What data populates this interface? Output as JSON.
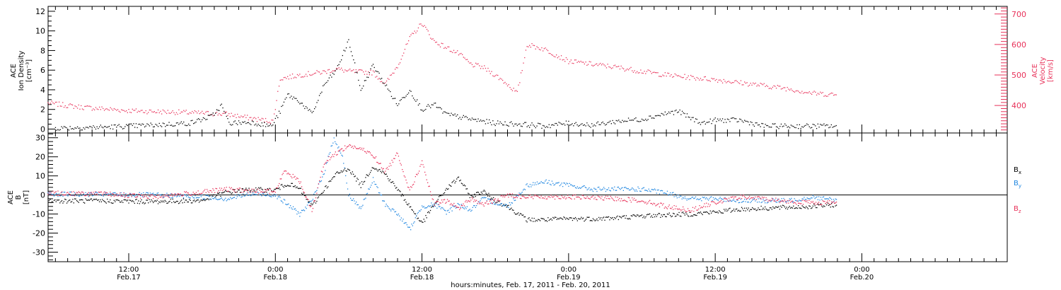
{
  "figure": {
    "xaxis_caption": "hours:minutes, Feb. 17, 2011 - Feb. 20, 2011",
    "time_ticks": [
      {
        "t": 12,
        "time": "12:00",
        "date": "Feb.17"
      },
      {
        "t": 24,
        "time": "0:00",
        "date": "Feb.18"
      },
      {
        "t": 36,
        "time": "12:00",
        "date": "Feb.18"
      },
      {
        "t": 48,
        "time": "0:00",
        "date": "Feb.19"
      },
      {
        "t": 60,
        "time": "12:00",
        "date": "Feb.19"
      },
      {
        "t": 72,
        "time": "0:00",
        "date": "Feb.20"
      }
    ],
    "colors": {
      "black": "#000000",
      "pink": "#e8325a",
      "blue": "#1f86e0"
    }
  },
  "chart_data": [
    {
      "type": "scatter",
      "panel": "top",
      "xlim": [
        5.4,
        83.9
      ],
      "xunit": "hours since 2011-02-17 00:00",
      "left_axis": {
        "label_lines": [
          "ACE",
          "Ion Density",
          "[cm⁻³]"
        ],
        "ylim": [
          -0.4,
          12.5
        ],
        "ticks": [
          0,
          2,
          4,
          6,
          8,
          10,
          12
        ],
        "color": "#000000"
      },
      "right_axis": {
        "label_lines": [
          "ACE",
          "Velocity",
          "[km/s]"
        ],
        "ylim": [
          310,
          725
        ],
        "ticks": [
          400,
          500,
          600,
          700
        ],
        "color": "#e8325a"
      },
      "series": [
        {
          "name": "",
          "axis": "left",
          "color": "#000000",
          "points": [
            [
              6,
              0.1
            ],
            [
              10,
              0.2
            ],
            [
              14,
              0.4
            ],
            [
              17,
              0.6
            ],
            [
              18.8,
              1.3
            ],
            [
              19.6,
              2.4
            ],
            [
              20.2,
              0.6
            ],
            [
              22,
              0.7
            ],
            [
              23.7,
              0.3
            ],
            [
              24.4,
              1.8
            ],
            [
              25,
              3.5
            ],
            [
              26,
              2.8
            ],
            [
              27,
              1.5
            ],
            [
              28,
              4.5
            ],
            [
              29,
              6
            ],
            [
              30,
              9
            ],
            [
              31,
              4
            ],
            [
              32,
              6.5
            ],
            [
              33,
              4.5
            ],
            [
              34,
              2.5
            ],
            [
              35,
              4
            ],
            [
              36,
              2
            ],
            [
              37,
              2.5
            ],
            [
              38,
              1.5
            ],
            [
              40,
              1
            ],
            [
              42,
              0.6
            ],
            [
              44,
              0.5
            ],
            [
              46,
              0.3
            ],
            [
              48,
              0.6
            ],
            [
              50,
              0.4
            ],
            [
              52,
              0.8
            ],
            [
              54,
              1
            ],
            [
              56,
              1.6
            ],
            [
              57,
              1.8
            ],
            [
              58,
              1.1
            ],
            [
              59,
              0.6
            ],
            [
              60,
              0.9
            ],
            [
              62,
              0.9
            ],
            [
              64,
              0.3
            ],
            [
              66,
              0.3
            ],
            [
              68,
              0.3
            ],
            [
              70,
              0.3
            ]
          ]
        },
        {
          "name": "",
          "axis": "right",
          "color": "#e8325a",
          "points": [
            [
              5.4,
              408
            ],
            [
              8,
              395
            ],
            [
              12,
              383
            ],
            [
              16,
              378
            ],
            [
              20,
              372
            ],
            [
              22.5,
              355
            ],
            [
              23.8,
              348
            ],
            [
              24.4,
              488
            ],
            [
              26,
              500
            ],
            [
              28,
              510
            ],
            [
              29,
              520
            ],
            [
              30,
              512
            ],
            [
              32,
              508
            ],
            [
              33,
              470
            ],
            [
              34,
              530
            ],
            [
              35,
              620
            ],
            [
              36,
              670
            ],
            [
              37,
              610
            ],
            [
              38,
              590
            ],
            [
              39,
              570
            ],
            [
              40,
              535
            ],
            [
              41,
              525
            ],
            [
              42,
              500
            ],
            [
              43,
              470
            ],
            [
              43.8,
              440
            ],
            [
              44.6,
              600
            ],
            [
              46,
              585
            ],
            [
              48,
              545
            ],
            [
              50,
              535
            ],
            [
              52,
              525
            ],
            [
              54,
              512
            ],
            [
              56,
              500
            ],
            [
              58,
              492
            ],
            [
              60,
              485
            ],
            [
              62,
              475
            ],
            [
              64,
              465
            ],
            [
              66,
              455
            ],
            [
              68,
              440
            ],
            [
              70,
              435
            ]
          ]
        }
      ]
    },
    {
      "type": "scatter",
      "panel": "bottom",
      "xlim": [
        5.4,
        83.9
      ],
      "xunit": "hours since 2011-02-17 00:00",
      "yaxis": {
        "label_lines": [
          "ACE",
          "B",
          "[nT]"
        ],
        "ylim": [
          -35,
          32.5
        ],
        "ticks": [
          -30,
          -20,
          -10,
          0,
          10,
          20,
          30
        ]
      },
      "zero_line": true,
      "series": [
        {
          "name": "Bx",
          "color": "#000000",
          "points": [
            [
              5.4,
              -3
            ],
            [
              10,
              -3.2
            ],
            [
              14,
              -3.5
            ],
            [
              18,
              -3
            ],
            [
              20,
              1.5
            ],
            [
              22,
              2.8
            ],
            [
              24,
              2.5
            ],
            [
              25,
              6
            ],
            [
              26,
              3
            ],
            [
              27,
              -6
            ],
            [
              28,
              3
            ],
            [
              29,
              11
            ],
            [
              30,
              14
            ],
            [
              31,
              5
            ],
            [
              32,
              15
            ],
            [
              33,
              11
            ],
            [
              34,
              3
            ],
            [
              35,
              -6
            ],
            [
              36,
              -15
            ],
            [
              37,
              -5
            ],
            [
              38,
              3
            ],
            [
              39,
              9
            ],
            [
              40,
              -1
            ],
            [
              41,
              2
            ],
            [
              42,
              -3
            ],
            [
              43,
              -6
            ],
            [
              44.6,
              -13
            ],
            [
              46,
              -13
            ],
            [
              48,
              -12.5
            ],
            [
              50,
              -12.5
            ],
            [
              52,
              -12
            ],
            [
              54,
              -11
            ],
            [
              56,
              -10.5
            ],
            [
              58,
              -10
            ],
            [
              60,
              -9
            ],
            [
              62,
              -7.5
            ],
            [
              64,
              -7
            ],
            [
              66,
              -6.5
            ],
            [
              68,
              -6
            ],
            [
              70,
              -5
            ]
          ]
        },
        {
          "name": "By",
          "color": "#1f86e0",
          "points": [
            [
              5.4,
              0.5
            ],
            [
              10,
              0.3
            ],
            [
              14,
              0
            ],
            [
              18,
              -1
            ],
            [
              20,
              -2
            ],
            [
              22,
              0.5
            ],
            [
              24,
              0
            ],
            [
              25,
              -5
            ],
            [
              26,
              -10
            ],
            [
              27,
              -3
            ],
            [
              28,
              12
            ],
            [
              28.8,
              30
            ],
            [
              29.5,
              20
            ],
            [
              30,
              0
            ],
            [
              31,
              -7
            ],
            [
              32,
              8
            ],
            [
              33,
              -5
            ],
            [
              34,
              -10
            ],
            [
              35,
              -18
            ],
            [
              36,
              -6
            ],
            [
              37,
              -5
            ],
            [
              38,
              -9
            ],
            [
              39,
              -5
            ],
            [
              40,
              -8
            ],
            [
              41,
              -2
            ],
            [
              42,
              -4
            ],
            [
              43,
              -6
            ],
            [
              44.6,
              5
            ],
            [
              46,
              7
            ],
            [
              48,
              5
            ],
            [
              50,
              3
            ],
            [
              52,
              3
            ],
            [
              54,
              3
            ],
            [
              56,
              1
            ],
            [
              58,
              -2
            ],
            [
              60,
              -2
            ],
            [
              62,
              -3
            ],
            [
              64,
              -3
            ],
            [
              66,
              -3
            ],
            [
              68,
              -1
            ],
            [
              70,
              -3
            ]
          ]
        },
        {
          "name": "Bz",
          "color": "#e8325a",
          "points": [
            [
              5.4,
              1
            ],
            [
              10,
              0.5
            ],
            [
              14,
              -1
            ],
            [
              18,
              1.5
            ],
            [
              20,
              3
            ],
            [
              22,
              2
            ],
            [
              24,
              2
            ],
            [
              24.8,
              13
            ],
            [
              26,
              7
            ],
            [
              27,
              -8
            ],
            [
              28,
              17
            ],
            [
              29,
              22
            ],
            [
              30,
              26
            ],
            [
              31,
              24
            ],
            [
              32,
              21
            ],
            [
              33,
              12
            ],
            [
              34,
              22
            ],
            [
              35,
              2
            ],
            [
              36,
              17
            ],
            [
              37,
              -5
            ],
            [
              38,
              -3
            ],
            [
              39,
              -7
            ],
            [
              40,
              -2
            ],
            [
              41,
              -5
            ],
            [
              42,
              -3
            ],
            [
              43,
              0
            ],
            [
              44.6,
              -1
            ],
            [
              46,
              -1
            ],
            [
              48,
              -1
            ],
            [
              50,
              -1.5
            ],
            [
              52,
              -2
            ],
            [
              54,
              -3
            ],
            [
              56,
              -6
            ],
            [
              58,
              -8
            ],
            [
              60,
              -4
            ],
            [
              62,
              -1
            ],
            [
              64,
              -2
            ],
            [
              66,
              -3.5
            ],
            [
              68,
              -4
            ],
            [
              70,
              -4
            ]
          ]
        }
      ]
    }
  ]
}
